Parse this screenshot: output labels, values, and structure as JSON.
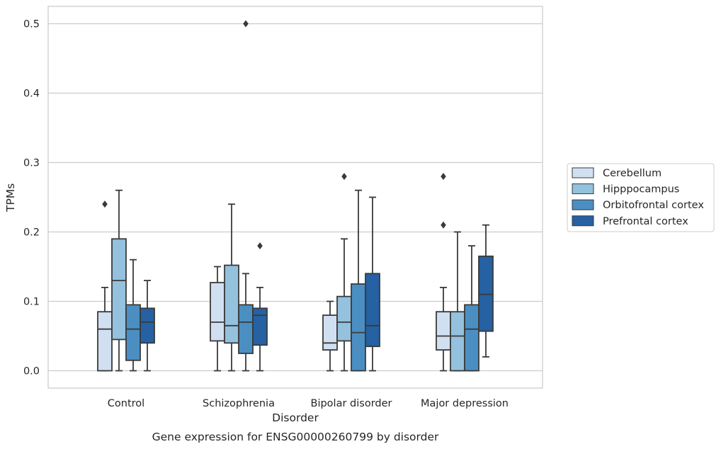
{
  "chart_data": {
    "type": "box",
    "title": "",
    "caption": "Gene expression for ENSG00000260799 by disorder",
    "xlabel": "Disorder",
    "ylabel": "TPMs",
    "ylim": [
      -0.025,
      0.525
    ],
    "yticks": [
      0.0,
      0.1,
      0.2,
      0.3,
      0.4,
      0.5
    ],
    "ytick_labels": [
      "0.0",
      "0.1",
      "0.2",
      "0.3",
      "0.4",
      "0.5"
    ],
    "grid": "horizontal",
    "legend_placement": "outside-right",
    "categories": [
      "Control",
      "Schizophrenia",
      "Bipolar disorder",
      "Major depression"
    ],
    "series": [
      {
        "name": "Cerebellum",
        "color": "#d1e0f1",
        "boxes": [
          {
            "whisker_low": 0.0,
            "q1": 0.0,
            "median": 0.06,
            "q3": 0.085,
            "whisker_high": 0.12,
            "outliers": [
              0.24
            ]
          },
          {
            "whisker_low": 0.0,
            "q1": 0.043,
            "median": 0.07,
            "q3": 0.127,
            "whisker_high": 0.15,
            "outliers": []
          },
          {
            "whisker_low": 0.0,
            "q1": 0.03,
            "median": 0.04,
            "q3": 0.08,
            "whisker_high": 0.1,
            "outliers": []
          },
          {
            "whisker_low": 0.0,
            "q1": 0.03,
            "median": 0.05,
            "q3": 0.085,
            "whisker_high": 0.12,
            "outliers": [
              0.21,
              0.28
            ]
          }
        ]
      },
      {
        "name": "Hipppocampus",
        "color": "#94c1dd",
        "boxes": [
          {
            "whisker_low": 0.0,
            "q1": 0.045,
            "median": 0.13,
            "q3": 0.19,
            "whisker_high": 0.26,
            "outliers": []
          },
          {
            "whisker_low": 0.0,
            "q1": 0.04,
            "median": 0.065,
            "q3": 0.152,
            "whisker_high": 0.24,
            "outliers": []
          },
          {
            "whisker_low": 0.0,
            "q1": 0.043,
            "median": 0.07,
            "q3": 0.107,
            "whisker_high": 0.19,
            "outliers": [
              0.28
            ]
          },
          {
            "whisker_low": 0.0,
            "q1": 0.0,
            "median": 0.05,
            "q3": 0.085,
            "whisker_high": 0.2,
            "outliers": []
          }
        ]
      },
      {
        "name": "Orbitofrontal cortex",
        "color": "#4b8fc2",
        "boxes": [
          {
            "whisker_low": 0.0,
            "q1": 0.015,
            "median": 0.06,
            "q3": 0.095,
            "whisker_high": 0.16,
            "outliers": []
          },
          {
            "whisker_low": 0.0,
            "q1": 0.025,
            "median": 0.07,
            "q3": 0.095,
            "whisker_high": 0.14,
            "outliers": [
              0.5
            ]
          },
          {
            "whisker_low": 0.0,
            "q1": 0.0,
            "median": 0.055,
            "q3": 0.125,
            "whisker_high": 0.26,
            "outliers": []
          },
          {
            "whisker_low": 0.0,
            "q1": 0.0,
            "median": 0.06,
            "q3": 0.095,
            "whisker_high": 0.18,
            "outliers": []
          }
        ]
      },
      {
        "name": "Prefrontal cortex",
        "color": "#2561a3",
        "boxes": [
          {
            "whisker_low": 0.0,
            "q1": 0.04,
            "median": 0.07,
            "q3": 0.09,
            "whisker_high": 0.13,
            "outliers": []
          },
          {
            "whisker_low": 0.0,
            "q1": 0.037,
            "median": 0.08,
            "q3": 0.09,
            "whisker_high": 0.12,
            "outliers": [
              0.18
            ]
          },
          {
            "whisker_low": 0.0,
            "q1": 0.035,
            "median": 0.065,
            "q3": 0.14,
            "whisker_high": 0.25,
            "outliers": []
          },
          {
            "whisker_low": 0.02,
            "q1": 0.057,
            "median": 0.11,
            "q3": 0.165,
            "whisker_high": 0.21,
            "outliers": []
          }
        ]
      }
    ],
    "colors": {
      "line": "#3a3a3a",
      "grid": "#cccccc",
      "frame": "#c8c8c8"
    }
  }
}
